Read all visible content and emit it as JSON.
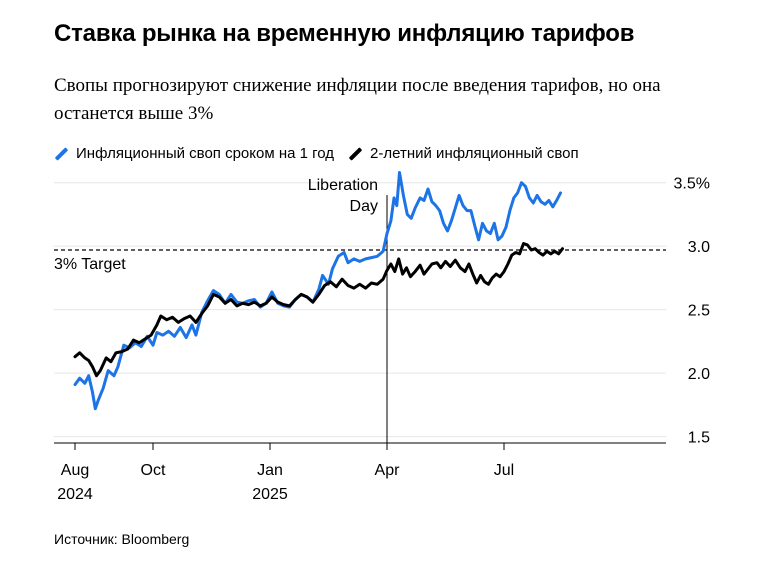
{
  "title": "Ставка рынка на временную инфляцию тарифов",
  "subtitle": "Свопы прогнозируют снижение инфляции после введения тарифов, но она останется выше 3%",
  "source": "Источник: Bloomberg",
  "colors": {
    "series1": "#1d74e7",
    "series2": "#000000",
    "grid": "#e6e6e6"
  },
  "chart_data": {
    "type": "line",
    "title": "Ставка рынка на временную инфляцию тарифов",
    "xlabel": "",
    "ylabel": "",
    "x": [
      "2024-08",
      "2024-09",
      "2024-10",
      "2024-11",
      "2024-12",
      "2025-01",
      "2025-02",
      "2025-03",
      "2025-04",
      "2025-05",
      "2025-06",
      "2025-07",
      "2025-08"
    ],
    "ylim": [
      1.45,
      3.6
    ],
    "y_ticks": [
      1.5,
      2.0,
      2.5,
      3.0,
      3.5
    ],
    "y_tick_labels": [
      "1.5",
      "2.0",
      "2.5",
      "3.0",
      "3.5%"
    ],
    "x_ticks": [
      {
        "label": "Aug",
        "sublabel": "2024",
        "value": 0
      },
      {
        "label": "Oct",
        "sublabel": "",
        "value": 2
      },
      {
        "label": "Jan",
        "sublabel": "2025",
        "value": 5
      },
      {
        "label": "Apr",
        "sublabel": "",
        "value": 8
      },
      {
        "label": "Jul",
        "sublabel": "",
        "value": 11
      }
    ],
    "x_range": [
      -0.4,
      14.5
    ],
    "series": [
      {
        "name": "Инфляционный своп сроком на 1 год",
        "color": "#1d74e7",
        "points": [
          [
            0.0,
            1.91
          ],
          [
            0.12,
            1.96
          ],
          [
            0.25,
            1.92
          ],
          [
            0.35,
            1.98
          ],
          [
            0.45,
            1.85
          ],
          [
            0.52,
            1.72
          ],
          [
            0.6,
            1.79
          ],
          [
            0.72,
            1.88
          ],
          [
            0.85,
            2.02
          ],
          [
            1.0,
            1.98
          ],
          [
            1.1,
            2.05
          ],
          [
            1.25,
            2.22
          ],
          [
            1.4,
            2.2
          ],
          [
            1.55,
            2.24
          ],
          [
            1.7,
            2.21
          ],
          [
            1.85,
            2.29
          ],
          [
            2.0,
            2.22
          ],
          [
            2.1,
            2.32
          ],
          [
            2.25,
            2.3
          ],
          [
            2.4,
            2.33
          ],
          [
            2.55,
            2.29
          ],
          [
            2.7,
            2.36
          ],
          [
            2.85,
            2.28
          ],
          [
            3.0,
            2.38
          ],
          [
            3.1,
            2.3
          ],
          [
            3.25,
            2.48
          ],
          [
            3.4,
            2.57
          ],
          [
            3.55,
            2.65
          ],
          [
            3.7,
            2.62
          ],
          [
            3.85,
            2.55
          ],
          [
            4.0,
            2.62
          ],
          [
            4.15,
            2.56
          ],
          [
            4.3,
            2.55
          ],
          [
            4.45,
            2.57
          ],
          [
            4.6,
            2.58
          ],
          [
            4.75,
            2.52
          ],
          [
            4.9,
            2.55
          ],
          [
            5.05,
            2.64
          ],
          [
            5.2,
            2.55
          ],
          [
            5.35,
            2.53
          ],
          [
            5.5,
            2.52
          ],
          [
            5.65,
            2.58
          ],
          [
            5.8,
            2.62
          ],
          [
            5.95,
            2.6
          ],
          [
            6.1,
            2.56
          ],
          [
            6.25,
            2.66
          ],
          [
            6.35,
            2.77
          ],
          [
            6.5,
            2.7
          ],
          [
            6.6,
            2.82
          ],
          [
            6.75,
            2.92
          ],
          [
            6.9,
            2.95
          ],
          [
            7.0,
            2.87
          ],
          [
            7.15,
            2.9
          ],
          [
            7.3,
            2.88
          ],
          [
            7.45,
            2.9
          ],
          [
            7.6,
            2.91
          ],
          [
            7.75,
            2.92
          ],
          [
            7.9,
            2.96
          ],
          [
            8.0,
            3.1
          ],
          [
            8.1,
            3.2
          ],
          [
            8.18,
            3.38
          ],
          [
            8.25,
            3.32
          ],
          [
            8.32,
            3.58
          ],
          [
            8.42,
            3.4
          ],
          [
            8.52,
            3.25
          ],
          [
            8.62,
            3.22
          ],
          [
            8.72,
            3.3
          ],
          [
            8.85,
            3.38
          ],
          [
            8.95,
            3.36
          ],
          [
            9.05,
            3.45
          ],
          [
            9.15,
            3.35
          ],
          [
            9.25,
            3.32
          ],
          [
            9.35,
            3.28
          ],
          [
            9.45,
            3.18
          ],
          [
            9.55,
            3.12
          ],
          [
            9.65,
            3.2
          ],
          [
            9.75,
            3.3
          ],
          [
            9.85,
            3.4
          ],
          [
            9.95,
            3.32
          ],
          [
            10.05,
            3.28
          ],
          [
            10.15,
            3.28
          ],
          [
            10.25,
            3.16
          ],
          [
            10.35,
            3.05
          ],
          [
            10.45,
            3.18
          ],
          [
            10.55,
            3.12
          ],
          [
            10.65,
            3.1
          ],
          [
            10.75,
            3.18
          ],
          [
            10.85,
            3.05
          ],
          [
            10.95,
            3.08
          ],
          [
            11.05,
            3.15
          ],
          [
            11.15,
            3.28
          ],
          [
            11.25,
            3.38
          ],
          [
            11.35,
            3.42
          ],
          [
            11.45,
            3.5
          ],
          [
            11.55,
            3.47
          ],
          [
            11.65,
            3.38
          ],
          [
            11.75,
            3.34
          ],
          [
            11.85,
            3.4
          ],
          [
            11.95,
            3.35
          ],
          [
            12.05,
            3.33
          ],
          [
            12.15,
            3.36
          ],
          [
            12.25,
            3.31
          ],
          [
            12.35,
            3.36
          ],
          [
            12.45,
            3.42
          ]
        ]
      },
      {
        "name": "2-летний инфляционный своп",
        "color": "#000000",
        "points": [
          [
            0.0,
            2.13
          ],
          [
            0.12,
            2.16
          ],
          [
            0.25,
            2.12
          ],
          [
            0.35,
            2.1
          ],
          [
            0.45,
            2.05
          ],
          [
            0.55,
            1.98
          ],
          [
            0.65,
            2.02
          ],
          [
            0.8,
            2.12
          ],
          [
            0.92,
            2.09
          ],
          [
            1.05,
            2.16
          ],
          [
            1.2,
            2.17
          ],
          [
            1.35,
            2.19
          ],
          [
            1.5,
            2.26
          ],
          [
            1.65,
            2.24
          ],
          [
            1.8,
            2.27
          ],
          [
            1.95,
            2.3
          ],
          [
            2.1,
            2.38
          ],
          [
            2.2,
            2.45
          ],
          [
            2.35,
            2.42
          ],
          [
            2.5,
            2.44
          ],
          [
            2.65,
            2.4
          ],
          [
            2.8,
            2.43
          ],
          [
            2.95,
            2.45
          ],
          [
            3.1,
            2.4
          ],
          [
            3.25,
            2.47
          ],
          [
            3.4,
            2.53
          ],
          [
            3.55,
            2.62
          ],
          [
            3.7,
            2.6
          ],
          [
            3.85,
            2.55
          ],
          [
            4.0,
            2.58
          ],
          [
            4.15,
            2.53
          ],
          [
            4.3,
            2.55
          ],
          [
            4.45,
            2.54
          ],
          [
            4.6,
            2.56
          ],
          [
            4.75,
            2.53
          ],
          [
            4.9,
            2.55
          ],
          [
            5.05,
            2.6
          ],
          [
            5.2,
            2.56
          ],
          [
            5.35,
            2.54
          ],
          [
            5.5,
            2.53
          ],
          [
            5.65,
            2.58
          ],
          [
            5.8,
            2.62
          ],
          [
            5.95,
            2.6
          ],
          [
            6.1,
            2.56
          ],
          [
            6.25,
            2.62
          ],
          [
            6.4,
            2.69
          ],
          [
            6.55,
            2.72
          ],
          [
            6.7,
            2.68
          ],
          [
            6.85,
            2.74
          ],
          [
            7.0,
            2.69
          ],
          [
            7.15,
            2.67
          ],
          [
            7.3,
            2.7
          ],
          [
            7.45,
            2.67
          ],
          [
            7.6,
            2.71
          ],
          [
            7.75,
            2.7
          ],
          [
            7.9,
            2.74
          ],
          [
            8.0,
            2.81
          ],
          [
            8.1,
            2.86
          ],
          [
            8.2,
            2.8
          ],
          [
            8.3,
            2.9
          ],
          [
            8.4,
            2.78
          ],
          [
            8.5,
            2.83
          ],
          [
            8.6,
            2.76
          ],
          [
            8.72,
            2.8
          ],
          [
            8.85,
            2.85
          ],
          [
            8.95,
            2.78
          ],
          [
            9.05,
            2.82
          ],
          [
            9.15,
            2.86
          ],
          [
            9.28,
            2.87
          ],
          [
            9.38,
            2.83
          ],
          [
            9.5,
            2.88
          ],
          [
            9.62,
            2.84
          ],
          [
            9.75,
            2.89
          ],
          [
            9.88,
            2.83
          ],
          [
            10.0,
            2.8
          ],
          [
            10.1,
            2.86
          ],
          [
            10.2,
            2.78
          ],
          [
            10.3,
            2.71
          ],
          [
            10.4,
            2.77
          ],
          [
            10.5,
            2.72
          ],
          [
            10.6,
            2.7
          ],
          [
            10.7,
            2.75
          ],
          [
            10.8,
            2.78
          ],
          [
            10.9,
            2.76
          ],
          [
            11.0,
            2.8
          ],
          [
            11.1,
            2.86
          ],
          [
            11.2,
            2.93
          ],
          [
            11.3,
            2.95
          ],
          [
            11.4,
            2.94
          ],
          [
            11.5,
            3.02
          ],
          [
            11.6,
            3.01
          ],
          [
            11.7,
            2.97
          ],
          [
            11.8,
            2.98
          ],
          [
            11.9,
            2.95
          ],
          [
            12.0,
            2.93
          ],
          [
            12.1,
            2.96
          ],
          [
            12.2,
            2.94
          ],
          [
            12.3,
            2.96
          ],
          [
            12.4,
            2.94
          ],
          [
            12.5,
            2.98
          ]
        ]
      }
    ],
    "annotations": [
      {
        "type": "hline",
        "y": 2.97,
        "label": "3% Target"
      },
      {
        "type": "vline",
        "x": 8.0,
        "label_lines": [
          "Liberation",
          "Day"
        ]
      }
    ]
  }
}
